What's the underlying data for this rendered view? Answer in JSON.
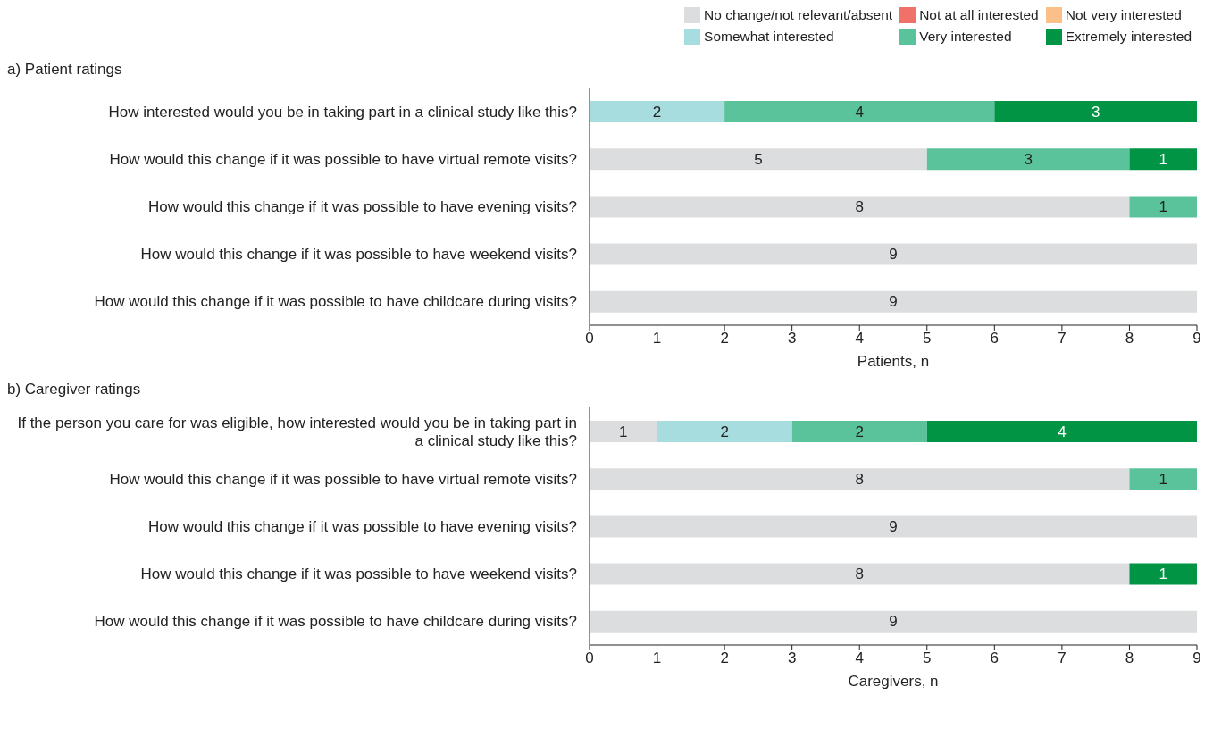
{
  "chart_data": [
    {
      "type": "bar",
      "orientation": "horizontal",
      "stacked": true,
      "title": "a) Patient ratings",
      "xlabel": "Patients, n",
      "categories": [
        "How interested would you be in taking part in a clinical study like this?",
        "How would this change if it was possible to have virtual remote visits?",
        "How would this change if it was possible to have evening visits?",
        "How would this change if it was possible to have weekend visits?",
        "How would this change if it was possible to have childcare during visits?"
      ],
      "series": [
        {
          "name": "No change/not relevant/absent",
          "color": "#dcdddf",
          "values": [
            0,
            5,
            8,
            9,
            9
          ],
          "value_labels": [
            null,
            "5",
            "8",
            "9",
            "9"
          ]
        },
        {
          "name": "Not at all interested",
          "color": "#f07167",
          "values": [
            0,
            0,
            0,
            0,
            0
          ],
          "value_labels": [
            null,
            null,
            null,
            null,
            null
          ]
        },
        {
          "name": "Not very interested",
          "color": "#fbbf8a",
          "values": [
            0,
            0,
            0,
            0,
            0
          ],
          "value_labels": [
            null,
            null,
            null,
            null,
            null
          ]
        },
        {
          "name": "Somewhat interested",
          "color": "#a8dde0",
          "values": [
            2,
            0,
            0,
            0,
            0
          ],
          "value_labels": [
            "2",
            null,
            null,
            null,
            null
          ]
        },
        {
          "name": "Very interested",
          "color": "#5bc39b",
          "values": [
            4,
            3,
            1,
            0,
            0
          ],
          "value_labels": [
            "4",
            "3",
            "1",
            null,
            null
          ]
        },
        {
          "name": "Extremely interested",
          "color": "#009444",
          "values": [
            3,
            1,
            0,
            0,
            0
          ],
          "value_labels": [
            "3",
            "1",
            null,
            null,
            null
          ]
        }
      ],
      "xlim": [
        0,
        9
      ],
      "xticks": [
        0,
        1,
        2,
        3,
        4,
        5,
        6,
        7,
        8,
        9
      ],
      "grid": false,
      "legend": "top right"
    },
    {
      "type": "bar",
      "orientation": "horizontal",
      "stacked": true,
      "title": "b) Caregiver ratings",
      "xlabel": "Caregivers, n",
      "categories": [
        "If the person you care for was eligible, how interested would you be in taking part in a clinical study like this?",
        "How would this change if it was possible to have virtual remote visits?",
        "How would this change if it was possible to have evening visits?",
        "How would this change if it was possible to have weekend visits?",
        "How would this change if it was possible to have childcare during visits?"
      ],
      "series": [
        {
          "color": "#dcdddf",
          "values": [
            1,
            8,
            9,
            8,
            9
          ],
          "value_labels": [
            "1",
            "8",
            "9",
            "8",
            "9"
          ]
        },
        {
          "color": "#f07167",
          "values": [
            0,
            0,
            0,
            0,
            0
          ],
          "value_labels": [
            null,
            null,
            null,
            null,
            null
          ]
        },
        {
          "color": "#fbbf8a",
          "values": [
            0,
            0,
            0,
            0,
            0
          ],
          "value_labels": [
            null,
            null,
            null,
            null,
            null
          ]
        },
        {
          "color": "#a8dde0",
          "values": [
            2,
            0,
            0,
            0,
            0
          ],
          "value_labels": [
            "2",
            null,
            null,
            null,
            null
          ]
        },
        {
          "color": "#5bc39b",
          "values": [
            2,
            1,
            0,
            0,
            0
          ],
          "value_labels": [
            "2",
            "1",
            null,
            null,
            null
          ]
        },
        {
          "color": "#009444",
          "values": [
            4,
            0,
            0,
            1,
            0
          ],
          "value_labels": [
            "4",
            null,
            null,
            "1",
            null
          ]
        }
      ],
      "xlim": [
        0,
        9
      ],
      "xticks": [
        0,
        1,
        2,
        3,
        4,
        5,
        6,
        7,
        8,
        9
      ],
      "grid": false
    }
  ]
}
